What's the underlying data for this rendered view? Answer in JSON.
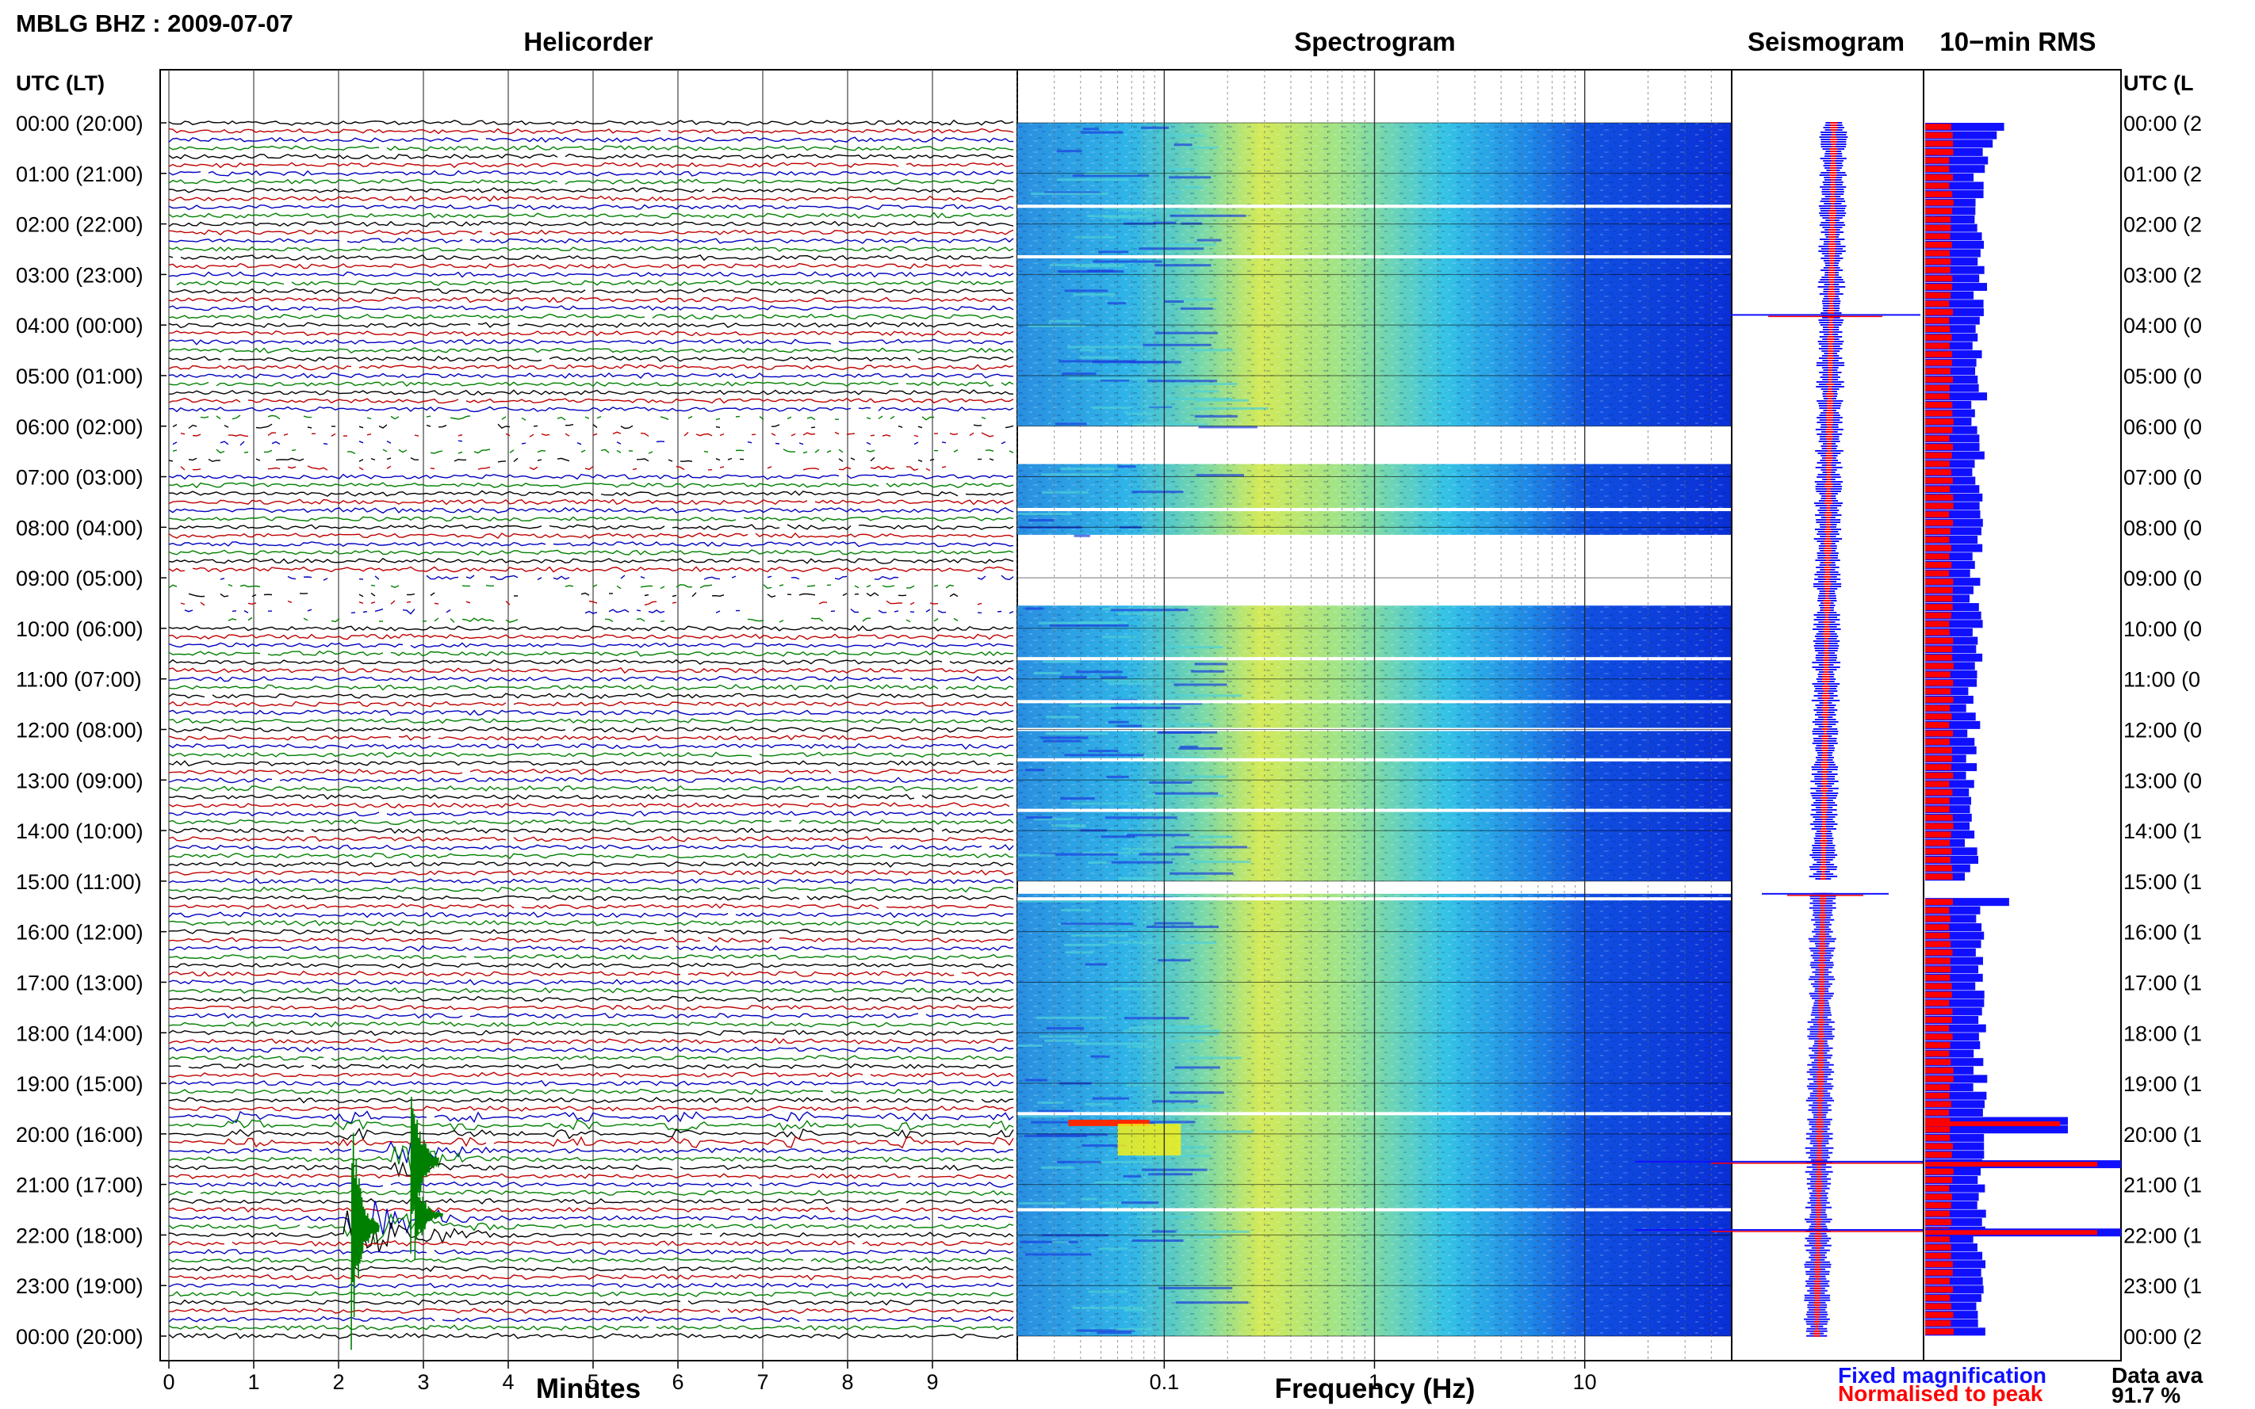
{
  "page": {
    "title": "MBLG BHZ : 2009-07-07",
    "utc_header": "UTC (LT)",
    "utc_header_right": "UTC (L",
    "data_avail_label": "Data ava",
    "data_avail_value": "91.7 %"
  },
  "panels": {
    "helicorder": "Helicorder",
    "spectrogram": "Spectrogram",
    "seismogram": "Seismogram",
    "rms": "10−min RMS"
  },
  "legend": {
    "fixed": "Fixed magnification",
    "normalised": "Normalised to peak"
  },
  "colors": {
    "trace_cycle": [
      "#000000",
      "#c00000",
      "#0000c0",
      "#008000"
    ],
    "fixed": "#1010ff",
    "normalised": "#ff0000",
    "spec_low": "#0a2fd6",
    "spec_high": "#f5f017"
  },
  "chart_data": [
    {
      "type": "line",
      "name": "helicorder",
      "title": "Helicorder",
      "xlabel": "Minutes",
      "xlim": [
        0,
        10
      ],
      "x_ticks": [
        "0",
        "1",
        "2",
        "3",
        "4",
        "5",
        "6",
        "7",
        "8",
        "9"
      ],
      "hours_utc": [
        "00:00",
        "01:00",
        "02:00",
        "03:00",
        "04:00",
        "05:00",
        "06:00",
        "07:00",
        "08:00",
        "09:00",
        "10:00",
        "11:00",
        "12:00",
        "13:00",
        "14:00",
        "15:00",
        "16:00",
        "17:00",
        "18:00",
        "19:00",
        "20:00",
        "21:00",
        "22:00",
        "23:00",
        "00:00"
      ],
      "hours_lt": [
        "(20:00)",
        "(21:00)",
        "(22:00)",
        "(23:00)",
        "(00:00)",
        "(01:00)",
        "(02:00)",
        "(03:00)",
        "(04:00)",
        "(05:00)",
        "(06:00)",
        "(07:00)",
        "(08:00)",
        "(09:00)",
        "(10:00)",
        "(11:00)",
        "(12:00)",
        "(13:00)",
        "(14:00)",
        "(15:00)",
        "(16:00)",
        "(17:00)",
        "(18:00)",
        "(19:00)",
        "(20:00)"
      ],
      "hours_lt_right": [
        "(2",
        "(2",
        "(2",
        "(2",
        "(0",
        "(0",
        "(0",
        "(0",
        "(0",
        "(0",
        "(0",
        "(0",
        "(0",
        "(0",
        "(1",
        "(1",
        "(1",
        "(1",
        "(1",
        "(1",
        "(1",
        "(1",
        "(1",
        "(1",
        "(2"
      ],
      "traces_per_hour": 6,
      "gap_hours": [
        6,
        9
      ],
      "event_start_hour": 20.1
    },
    {
      "type": "heatmap",
      "name": "spectrogram",
      "title": "Spectrogram",
      "xlabel": "Frequency (Hz)",
      "x_scale": "log",
      "xlim": [
        0.02,
        50
      ],
      "x_ticks": [
        0.1,
        1,
        10
      ],
      "x_tick_labels": [
        "0.1",
        "1",
        "10"
      ],
      "gaps_hours": [
        [
          6.0,
          6.75
        ],
        [
          8.15,
          9.55
        ],
        [
          15.0,
          15.25
        ]
      ],
      "white_line_hours": [
        1.65,
        2.65,
        7.65,
        10.6,
        11.45,
        12.0,
        12.6,
        13.6,
        15.35,
        19.6,
        21.5
      ]
    },
    {
      "type": "bar",
      "name": "rms",
      "title": "10−min RMS",
      "series": [
        {
          "name": "Fixed magnification",
          "color": "#1010ff"
        },
        {
          "name": "Normalised to peak",
          "color": "#ff0000"
        }
      ],
      "spikes_hours": [
        19.8,
        20.6,
        21.95
      ]
    }
  ]
}
